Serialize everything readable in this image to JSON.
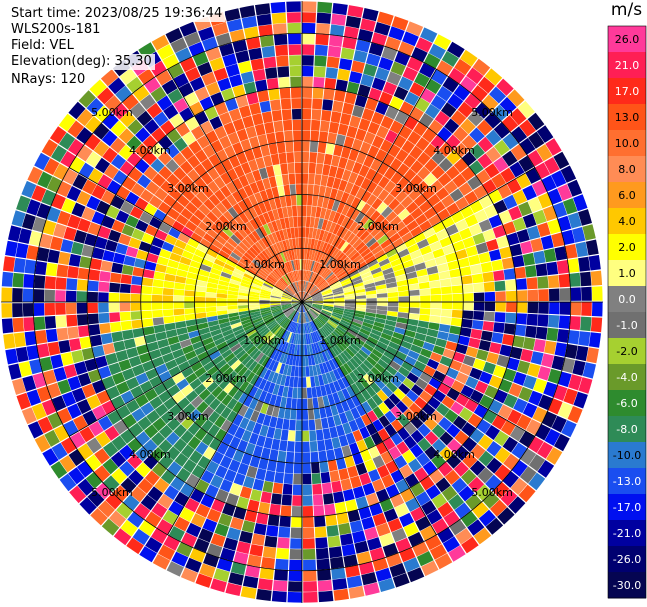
{
  "header": {
    "start_time": "Start time: 2023/08/25 19:36:44",
    "instrument": "WLS200s-181",
    "field": "Field: VEL",
    "elevation": "Elevation(deg): 35.30",
    "nrays": "NRays: 120"
  },
  "chart_data": {
    "type": "heatmap",
    "projection": "polar-ppi",
    "field": "VEL",
    "units": "m/s",
    "n_rays": 120,
    "elevation_deg": 35.3,
    "range_rings_km": [
      1,
      2,
      3,
      4,
      5
    ],
    "ring_labels": [
      "1.00km",
      "2.00km",
      "3.00km",
      "4.00km",
      "5.00km"
    ],
    "max_range_km": 5.6,
    "colorbar": {
      "title": "m/s",
      "tick_labels": [
        "26.0",
        "21.0",
        "17.0",
        "13.0",
        "10.0",
        "8.0",
        "6.0",
        "4.0",
        "2.0",
        "1.0",
        "0.0",
        "-1.0",
        "-2.0",
        "-4.0",
        "-6.0",
        "-8.0",
        "-10.0",
        "-13.0",
        "-17.0",
        "-21.0",
        "-26.0",
        "-30.0"
      ],
      "colors": [
        "#ff3a9a",
        "#ff1f55",
        "#ff2a1a",
        "#ff5418",
        "#ff6f30",
        "#ff8c55",
        "#ff9a1e",
        "#ffc800",
        "#ffff00",
        "#ffff80",
        "#808080",
        "#707070",
        "#a6d030",
        "#6a9a2a",
        "#2e8b2e",
        "#2e8b57",
        "#2a7ad0",
        "#1a4ef0",
        "#0010f0",
        "#0000a0",
        "#000070",
        "#050552"
      ]
    },
    "sectors": [
      {
        "azimuth_range_deg": [
          300,
          60
        ],
        "inner_velocity_ms": 12,
        "outer": "noise"
      },
      {
        "azimuth_range_deg": [
          60,
          100
        ],
        "inner_velocity_ms": 1,
        "outer": "noise"
      },
      {
        "azimuth_range_deg": [
          100,
          150
        ],
        "inner_velocity_ms": -6,
        "outer": "noise"
      },
      {
        "azimuth_range_deg": [
          150,
          210
        ],
        "inner_velocity_ms": -10,
        "outer": "noise"
      },
      {
        "azimuth_range_deg": [
          210,
          260
        ],
        "inner_velocity_ms": -6,
        "outer": "noise"
      },
      {
        "azimuth_range_deg": [
          260,
          300
        ],
        "inner_velocity_ms": 2,
        "outer": "noise"
      }
    ]
  }
}
